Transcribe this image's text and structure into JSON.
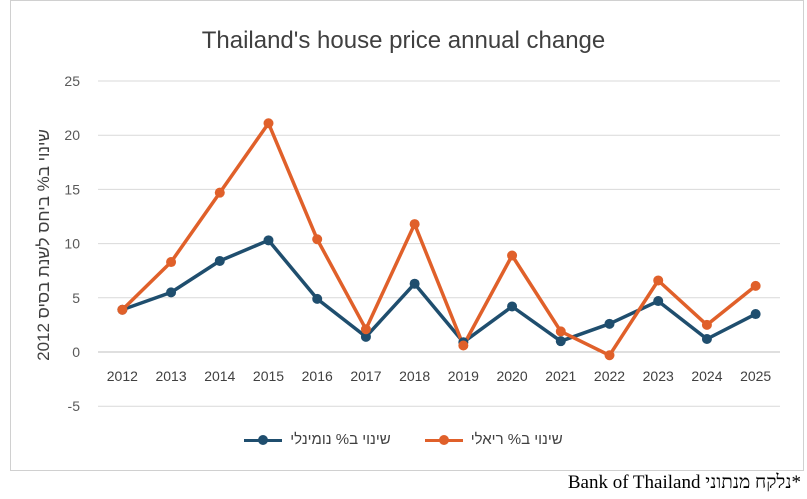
{
  "chart_data": {
    "type": "line",
    "title": "Thailand's house price annual change",
    "ylabel": "שינוי ב% ביחס לשנת בסיס 2012",
    "xlabel": "",
    "categories": [
      "2012",
      "2013",
      "2014",
      "2015",
      "2016",
      "2017",
      "2018",
      "2019",
      "2020",
      "2021",
      "2022",
      "2023",
      "2024",
      "2025"
    ],
    "yticks": [
      "25",
      "20",
      "15",
      "10",
      "5",
      "0",
      "-5"
    ],
    "ylim": [
      -5,
      25
    ],
    "grid": true,
    "legend_position": "bottom",
    "series": [
      {
        "name": "שינוי ב% נומינלי",
        "color": "#1f4e6e",
        "values": [
          3.9,
          5.5,
          8.4,
          10.3,
          4.9,
          1.4,
          6.3,
          0.9,
          4.2,
          1.0,
          2.6,
          4.7,
          1.2,
          3.5
        ]
      },
      {
        "name": "שינוי ב% ריאלי",
        "color": "#e0602a",
        "values": [
          3.9,
          8.3,
          14.7,
          21.1,
          10.4,
          2.1,
          11.8,
          0.6,
          8.9,
          1.9,
          -0.3,
          6.6,
          2.5,
          6.1
        ]
      }
    ]
  },
  "source_note": "*נלקח מנתוני Bank of Thailand"
}
